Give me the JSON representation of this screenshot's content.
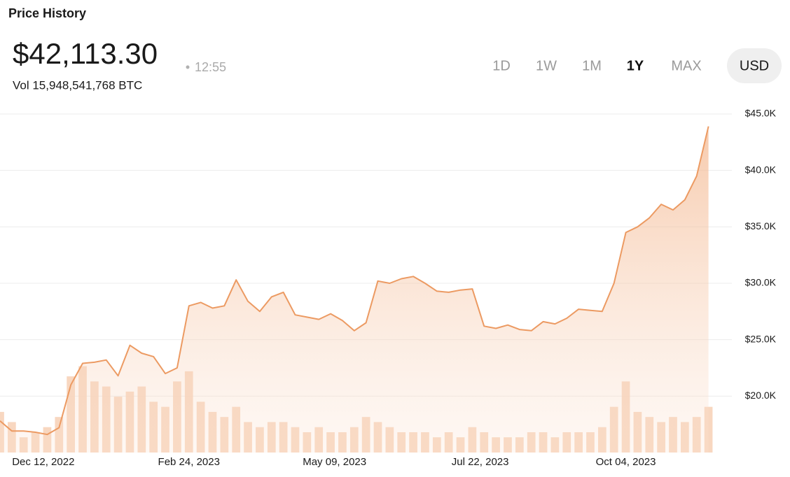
{
  "header": {
    "title": "Price History",
    "price": "$42,113.30",
    "time": "12:55",
    "volume": "Vol 15,948,541,768 BTC",
    "ranges": [
      "1D",
      "1W",
      "1M",
      "1Y",
      "MAX"
    ],
    "selected_range": "1Y",
    "currency": "USD"
  },
  "chart_data": {
    "type": "area",
    "x": [
      "2022-11-20",
      "2022-11-26",
      "2022-12-02",
      "2022-12-08",
      "2022-12-14",
      "2022-12-20",
      "2022-12-26",
      "2023-01-01",
      "2023-01-07",
      "2023-01-13",
      "2023-01-19",
      "2023-01-25",
      "2023-01-31",
      "2023-02-06",
      "2023-02-12",
      "2023-02-18",
      "2023-02-24",
      "2023-03-02",
      "2023-03-08",
      "2023-03-14",
      "2023-03-20",
      "2023-03-26",
      "2023-04-01",
      "2023-04-07",
      "2023-04-13",
      "2023-04-19",
      "2023-04-25",
      "2023-05-01",
      "2023-05-07",
      "2023-05-13",
      "2023-05-19",
      "2023-05-25",
      "2023-05-31",
      "2023-06-06",
      "2023-06-12",
      "2023-06-18",
      "2023-06-24",
      "2023-06-30",
      "2023-07-06",
      "2023-07-12",
      "2023-07-18",
      "2023-07-24",
      "2023-07-30",
      "2023-08-05",
      "2023-08-11",
      "2023-08-17",
      "2023-08-23",
      "2023-08-29",
      "2023-09-04",
      "2023-09-10",
      "2023-09-16",
      "2023-09-22",
      "2023-09-28",
      "2023-10-04",
      "2023-10-10",
      "2023-10-16",
      "2023-10-22",
      "2023-10-28",
      "2023-11-03",
      "2023-11-09",
      "2023-11-15"
    ],
    "values": [
      17800,
      16900,
      16900,
      16800,
      16600,
      17200,
      21000,
      22900,
      23000,
      23200,
      21800,
      24500,
      23800,
      23500,
      22000,
      22500,
      28000,
      28300,
      27800,
      28000,
      30300,
      28400,
      27500,
      28800,
      29200,
      27200,
      27000,
      26800,
      27300,
      26700,
      25800,
      26500,
      30200,
      30000,
      30400,
      30600,
      30000,
      29300,
      29200,
      29400,
      29500,
      26200,
      26000,
      26300,
      25900,
      25800,
      26600,
      26400,
      26900,
      27700,
      27600,
      27500,
      30000,
      34500,
      35000,
      35800,
      37000,
      36500,
      37400,
      39500,
      43900
    ],
    "color": "#ec9a62",
    "volume_values": [
      40,
      30,
      15,
      20,
      25,
      35,
      75,
      85,
      70,
      65,
      55,
      60,
      65,
      50,
      45,
      70,
      80,
      50,
      40,
      35,
      45,
      30,
      25,
      30,
      30,
      25,
      20,
      25,
      20,
      20,
      25,
      35,
      30,
      25,
      20,
      20,
      20,
      15,
      20,
      15,
      25,
      20,
      15,
      15,
      15,
      20,
      20,
      15,
      20,
      20,
      20,
      25,
      45,
      70,
      40,
      35,
      30,
      35,
      30,
      35,
      45
    ],
    "volume_ylim": [
      0,
      100
    ],
    "volume_color": "#f6cdb0",
    "xlim": [
      "2022-11-20",
      "2023-11-18"
    ],
    "xticks": [
      {
        "value": "2022-12-12",
        "label": "Dec 12, 2022"
      },
      {
        "value": "2023-02-24",
        "label": "Feb 24, 2023"
      },
      {
        "value": "2023-05-09",
        "label": "May 09, 2023"
      },
      {
        "value": "2023-07-22",
        "label": "Jul 22, 2023"
      },
      {
        "value": "2023-10-04",
        "label": "Oct 04, 2023"
      }
    ],
    "ylim": [
      15000,
      45000
    ],
    "yticks": [
      {
        "value": 20000,
        "label": "$20.0K"
      },
      {
        "value": 25000,
        "label": "$25.0K"
      },
      {
        "value": 30000,
        "label": "$30.0K"
      },
      {
        "value": 35000,
        "label": "$35.0K"
      },
      {
        "value": 40000,
        "label": "$40.0K"
      },
      {
        "value": 45000,
        "label": "$45.0K"
      }
    ],
    "grid": true
  }
}
